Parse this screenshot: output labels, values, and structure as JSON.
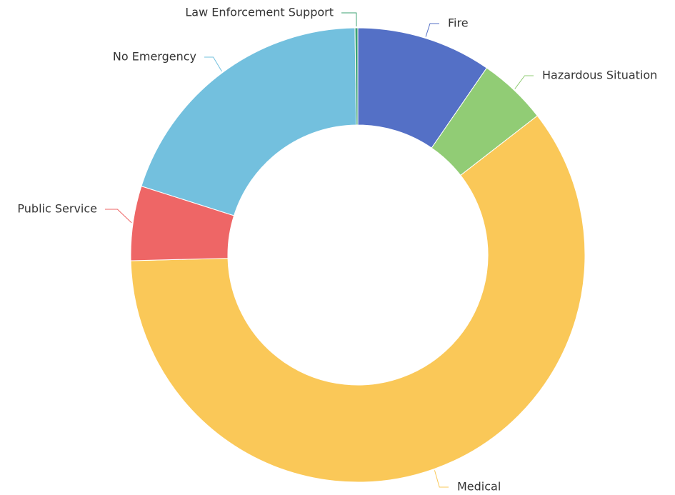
{
  "chart_data": {
    "type": "pie",
    "variant": "donut",
    "title": "",
    "legend": "none",
    "labels_outside_with_leader_lines": true,
    "start_position": "top",
    "direction": "clockwise",
    "slices": [
      {
        "name": "Fire",
        "value": 9.6,
        "color": "#5470c6"
      },
      {
        "name": "Hazardous Situation",
        "value": 4.9,
        "color": "#91cc75"
      },
      {
        "name": "Medical",
        "value": 60.1,
        "color": "#fac858"
      },
      {
        "name": "Public Service",
        "value": 5.3,
        "color": "#ee6666"
      },
      {
        "name": "No Emergency",
        "value": 19.9,
        "color": "#73c0de"
      },
      {
        "name": "Law Enforcement Support",
        "value": 0.2,
        "color": "#3ba272"
      }
    ]
  }
}
